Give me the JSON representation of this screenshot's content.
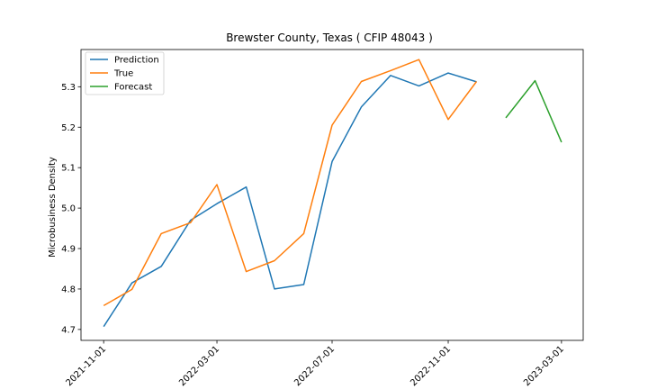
{
  "chart_data": {
    "type": "line",
    "title": "Brewster County, Texas ( CFIP 48043 )",
    "xlabel": "",
    "ylabel": "Microbusiness Density",
    "ylim": [
      4.673,
      5.392
    ],
    "xlim": [
      "2021-10-08",
      "2023-03-24"
    ],
    "yticks": [
      4.7,
      4.8,
      4.9,
      5.0,
      5.1,
      5.2,
      5.3
    ],
    "ytick_labels": [
      "4.7",
      "4.8",
      "4.9",
      "5.0",
      "5.1",
      "5.2",
      "5.3"
    ],
    "xticks": [
      "2021-11-01",
      "2022-03-01",
      "2022-07-01",
      "2022-11-01",
      "2023-03-01"
    ],
    "legend": {
      "position": "top-left"
    },
    "grid": false,
    "series": [
      {
        "name": "Prediction",
        "color": "#1f77b4",
        "x": [
          "2021-11-01",
          "2021-12-01",
          "2022-01-01",
          "2022-02-01",
          "2022-03-01",
          "2022-04-01",
          "2022-05-01",
          "2022-06-01",
          "2022-07-01",
          "2022-08-01",
          "2022-09-01",
          "2022-10-01",
          "2022-11-01",
          "2022-12-01"
        ],
        "y": [
          4.707,
          4.815,
          4.856,
          4.97,
          5.011,
          5.052,
          4.8,
          4.811,
          5.115,
          5.25,
          5.328,
          5.302,
          5.334,
          5.312
        ]
      },
      {
        "name": "True",
        "color": "#ff7f0e",
        "x": [
          "2021-11-01",
          "2021-12-01",
          "2022-01-01",
          "2022-02-01",
          "2022-03-01",
          "2022-04-01",
          "2022-05-01",
          "2022-06-01",
          "2022-07-01",
          "2022-08-01",
          "2022-09-01",
          "2022-10-01",
          "2022-11-01",
          "2022-12-01"
        ],
        "y": [
          4.759,
          4.799,
          4.937,
          4.964,
          5.058,
          4.843,
          4.87,
          4.937,
          5.205,
          5.313,
          5.34,
          5.367,
          5.219,
          5.313
        ]
      },
      {
        "name": "Forecast",
        "color": "#2ca02c",
        "x": [
          "2023-01-01",
          "2023-02-01",
          "2023-03-01"
        ],
        "y": [
          5.223,
          5.315,
          5.163
        ]
      }
    ]
  }
}
